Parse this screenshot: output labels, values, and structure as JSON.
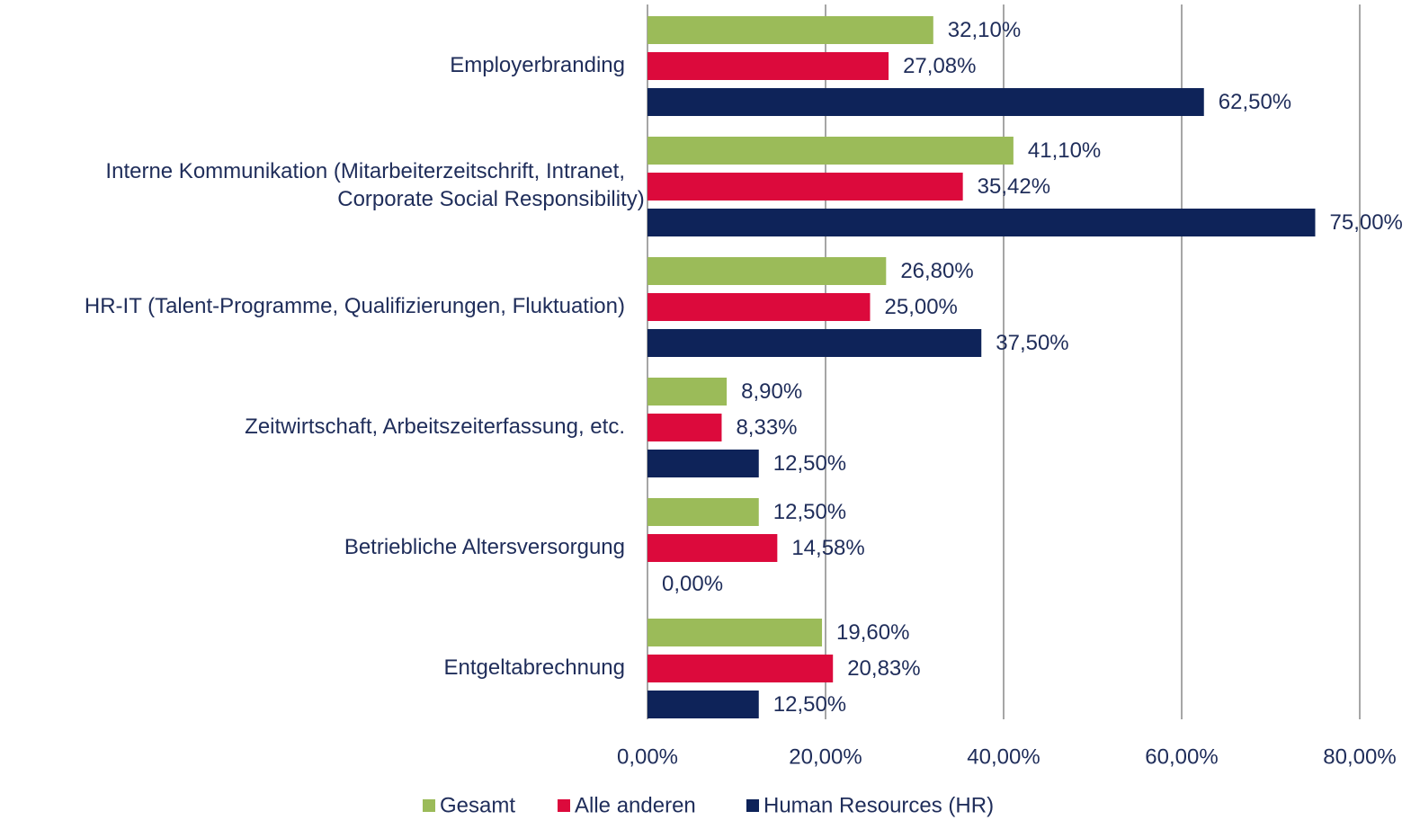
{
  "chart_data": {
    "type": "hbar",
    "categories": [
      "Employerbranding",
      "Interne Kommunikation (Mitarbeiterzeitschrift, Intranet,\nCorporate Social Responsibility)",
      "HR-IT (Talent-Programme, Qualifizierungen, Fluktuation)",
      "Zeitwirtschaft, Arbeitszeiterfassung, etc.",
      "Betriebliche Altersversorgung",
      "Entgeltabrechnung"
    ],
    "series": [
      {
        "name": "Gesamt",
        "color": "#9bbb59",
        "values": [
          32.1,
          41.1,
          26.8,
          8.9,
          12.5,
          19.6
        ],
        "value_labels": [
          "32,10%",
          "41,10%",
          "26,80%",
          "8,90%",
          "12,50%",
          "19,60%"
        ]
      },
      {
        "name": "Alle anderen",
        "color": "#dc0a3c",
        "values": [
          27.08,
          35.42,
          25,
          8.33,
          14.58,
          20.83
        ],
        "value_labels": [
          "27,08%",
          "35,42%",
          "25,00%",
          "8,33%",
          "14,58%",
          "20,83%"
        ]
      },
      {
        "name": "Human Resources (HR)",
        "color": "#0e2359",
        "values": [
          62.5,
          75,
          37.5,
          12.5,
          0,
          12.5
        ],
        "value_labels": [
          "62,50%",
          "75,00%",
          "37,50%",
          "12,50%",
          "0,00%",
          "12,50%"
        ]
      }
    ],
    "xlim": [
      0,
      80
    ],
    "xticks": [
      {
        "value": 0,
        "label": "0,00%"
      },
      {
        "value": 20,
        "label": "20,00%"
      },
      {
        "value": 40,
        "label": "40,00%"
      },
      {
        "value": 60,
        "label": "60,00%"
      },
      {
        "value": 80,
        "label": "80,00%"
      }
    ],
    "grid": true,
    "legend": "bottom"
  }
}
